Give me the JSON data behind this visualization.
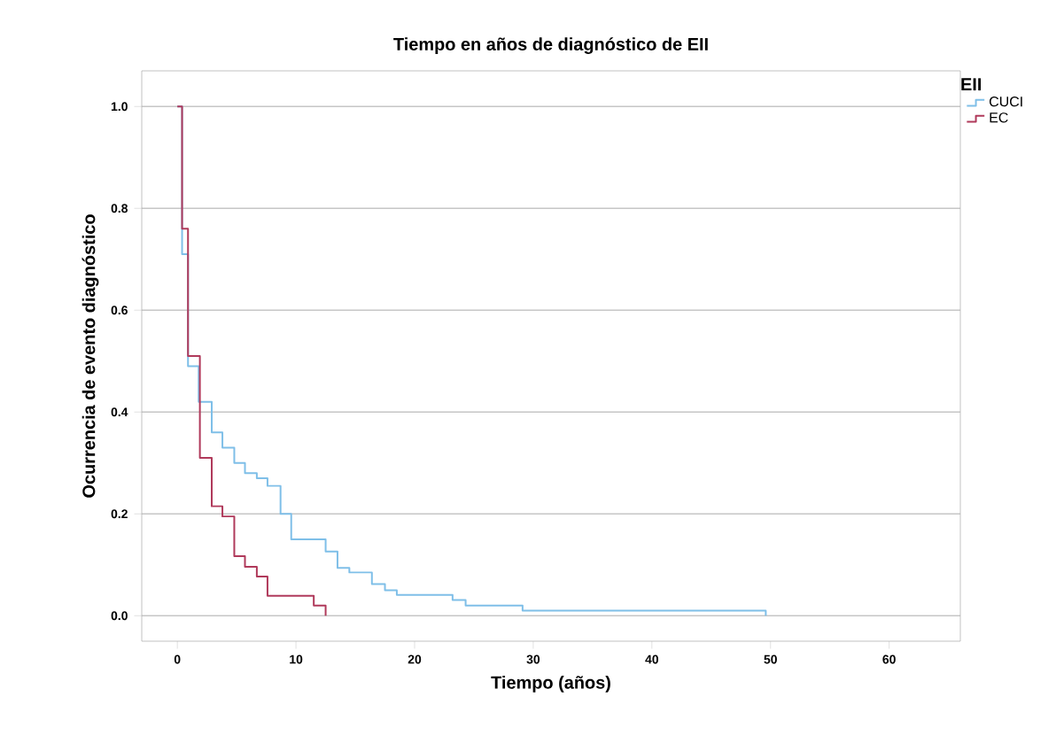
{
  "chart_data": {
    "type": "step",
    "title": "Tiempo en años de diagnóstico de EII",
    "xlabel": "Tiempo (años)",
    "ylabel": "Ocurrencia de evento diagnóstico",
    "legend_title": "EII",
    "legend": "top right",
    "grid": "y",
    "xlim": [
      -3,
      66
    ],
    "ylim": [
      -0.05,
      1.07
    ],
    "xticks": [
      0,
      10,
      20,
      30,
      40,
      50,
      60
    ],
    "yticks": [
      {
        "value": 0,
        "label": "0.0"
      },
      {
        "value": 0.2,
        "label": "0.2"
      },
      {
        "value": 0.4,
        "label": "0.4"
      },
      {
        "value": 0.6,
        "label": "0.6"
      },
      {
        "value": 0.8,
        "label": "0.8"
      },
      {
        "value": 1,
        "label": "1.0"
      }
    ],
    "series": [
      {
        "name": "CUCI",
        "color": "#7fbfe8",
        "x": [
          0,
          0.4,
          0.9,
          1.8,
          2.9,
          3.8,
          4.8,
          5.7,
          6.7,
          7.6,
          8.7,
          9.6,
          12.5,
          13.5,
          14.5,
          16.4,
          17.5,
          18.5,
          23.2,
          24.3,
          29.1,
          49.6
        ],
        "values": [
          1.0,
          0.71,
          0.49,
          0.42,
          0.36,
          0.33,
          0.3,
          0.28,
          0.27,
          0.255,
          0.2,
          0.15,
          0.126,
          0.094,
          0.085,
          0.062,
          0.05,
          0.041,
          0.031,
          0.02,
          0.01,
          0.0
        ]
      },
      {
        "name": "EC",
        "color": "#b03a5b",
        "x": [
          0,
          0.4,
          0.9,
          1.9,
          2.9,
          3.8,
          4.8,
          5.7,
          6.7,
          7.6,
          11.5,
          12.5
        ],
        "values": [
          1.0,
          0.76,
          0.51,
          0.31,
          0.215,
          0.195,
          0.117,
          0.096,
          0.077,
          0.039,
          0.02,
          0.0
        ]
      }
    ]
  }
}
